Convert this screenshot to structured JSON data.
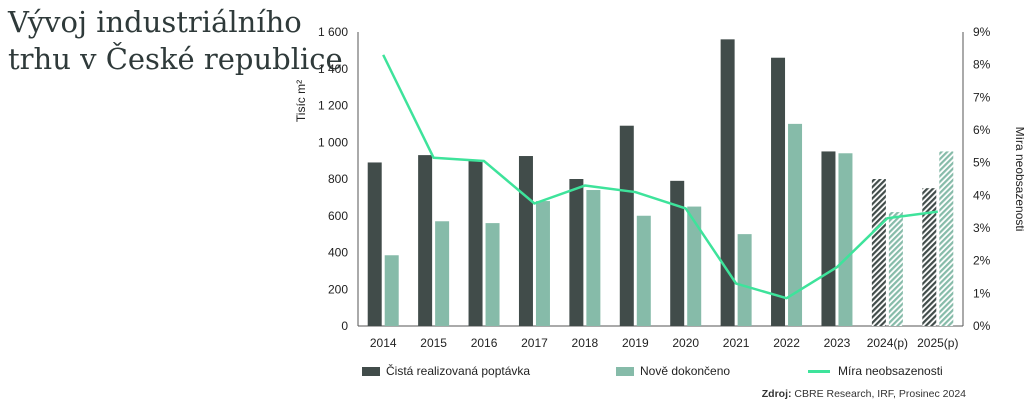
{
  "title": {
    "line1": "Vývoj industriálního",
    "line2": "trhu v České republice"
  },
  "source": {
    "label": "Zdroj:",
    "text": "CBRE Research, IRF, Prosinec 2024"
  },
  "colors": {
    "demand": "#414c4a",
    "completions": "#86bba9",
    "vacancy": "#3ee39b",
    "axis": "#555555"
  },
  "chart_data": {
    "type": "bar",
    "categories": [
      "2014",
      "2015",
      "2016",
      "2017",
      "2018",
      "2019",
      "2020",
      "2021",
      "2022",
      "2023",
      "2024(p)",
      "2025(p)"
    ],
    "projected_from_index": 10,
    "y_left": {
      "label": "Tisíc m²",
      "ylim": [
        0,
        1600
      ],
      "ticks": [
        "0",
        "200",
        "400",
        "600",
        "800",
        "1 000",
        "1 200",
        "1 400",
        "1 600"
      ]
    },
    "y_right": {
      "label": "Míra neobsazenosti",
      "ylim": [
        0,
        9
      ],
      "ticks": [
        "0%",
        "1%",
        "2%",
        "3%",
        "4%",
        "5%",
        "6%",
        "7%",
        "8%",
        "9%"
      ]
    },
    "grid": false,
    "legend_position": "bottom",
    "series": [
      {
        "name": "Čistá realizovaná poptávka",
        "type": "bar",
        "axis": "left",
        "values": [
          890,
          930,
          900,
          925,
          800,
          1090,
          790,
          1560,
          1460,
          950,
          800,
          750
        ]
      },
      {
        "name": "Nově dokončeno",
        "type": "bar",
        "axis": "left",
        "values": [
          385,
          570,
          560,
          680,
          740,
          600,
          650,
          500,
          1100,
          940,
          620,
          950
        ]
      },
      {
        "name": "Míra neobsazenosti",
        "type": "line",
        "axis": "right",
        "values": [
          8.3,
          5.15,
          5.05,
          3.75,
          4.3,
          4.1,
          3.6,
          1.3,
          0.85,
          1.8,
          3.3,
          3.5
        ]
      }
    ]
  }
}
